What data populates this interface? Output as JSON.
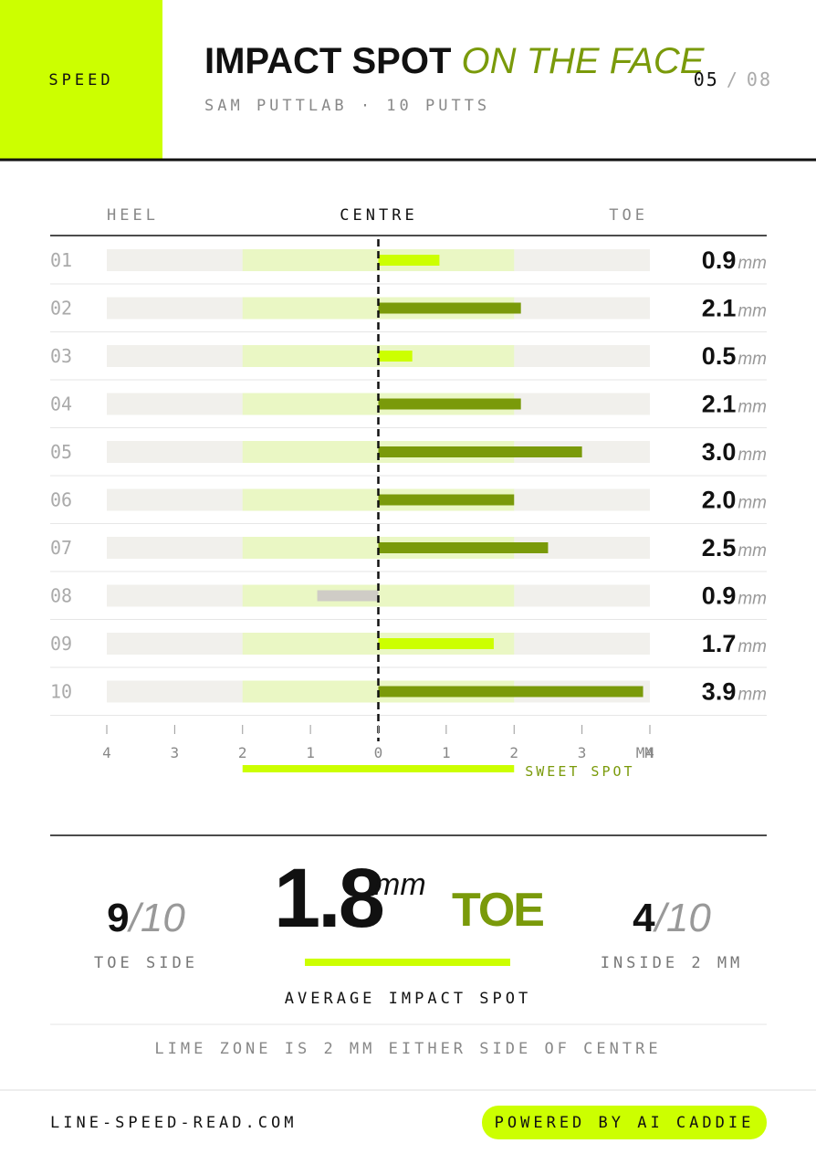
{
  "header": {
    "tag": "SPEED",
    "title": "IMPACT SPOT",
    "title_accent": "ON THE FACE",
    "subtitle": "SAM PUTTLAB · 10 PUTTS",
    "page": "05",
    "page_sep": "/",
    "page_total": "08"
  },
  "chart_data": {
    "type": "diverging-bar",
    "axis_labels": {
      "left": "HEEL",
      "centre": "CENTRE",
      "right": "TOE"
    },
    "categories": [
      "01",
      "02",
      "03",
      "04",
      "05",
      "06",
      "07",
      "08",
      "09",
      "10"
    ],
    "values": [
      0.9,
      2.1,
      0.5,
      2.1,
      3.0,
      2.0,
      2.5,
      -0.9,
      1.7,
      3.9
    ],
    "value_labels": [
      "0.9",
      "2.1",
      "0.5",
      "2.1",
      "3.0",
      "2.0",
      "2.5",
      "0.9",
      "1.7",
      "3.9"
    ],
    "colors": [
      "#ccff00",
      "#7a9a0a",
      "#ccff00",
      "#7a9a0a",
      "#7a9a0a",
      "#7a9a0a",
      "#7a9a0a",
      "#cfccc6",
      "#ccff00",
      "#7a9a0a"
    ],
    "unit": "mm",
    "xlim": [
      -4,
      4
    ],
    "xticks": [
      {
        "value": -4,
        "label": "4"
      },
      {
        "value": -3,
        "label": "3"
      },
      {
        "value": -2,
        "label": "2"
      },
      {
        "value": -1,
        "label": "1"
      },
      0,
      1,
      2,
      3,
      4
    ],
    "xlabel": "MM",
    "sweet_spot": {
      "range": [
        -2,
        2
      ],
      "label": "SWEET SPOT",
      "color": "#ccff00",
      "zone_color": "#eaf7c4"
    },
    "track_color": "#f1f0ec"
  },
  "summary": {
    "left": {
      "count": "9",
      "of": "/10",
      "label": "TOE SIDE"
    },
    "centre": {
      "value": "1.8",
      "unit": "mm",
      "side": "TOE",
      "label": "AVERAGE IMPACT SPOT"
    },
    "right": {
      "count": "4",
      "of": "/10",
      "label": "INSIDE 2 MM"
    },
    "note": "LIME ZONE IS 2 MM EITHER SIDE OF CENTRE"
  },
  "footer": {
    "site": "LINE-SPEED-READ.COM",
    "button": "POWERED BY AI CADDIE"
  }
}
